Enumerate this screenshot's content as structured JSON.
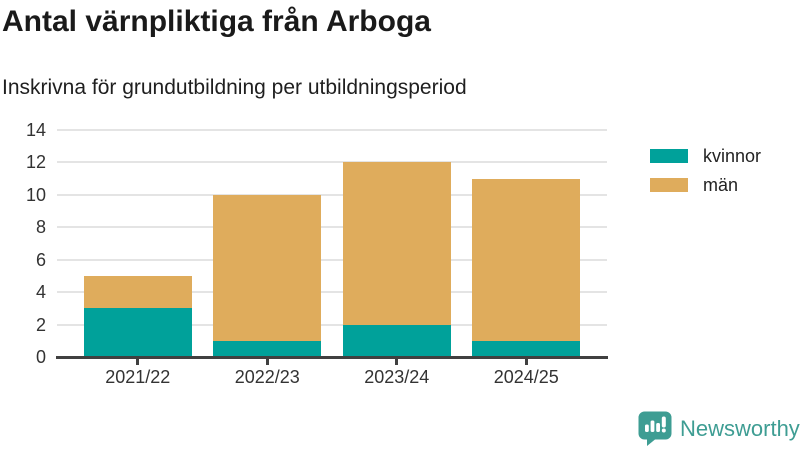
{
  "title": "Antal värnpliktiga från Arboga",
  "subtitle": "Inskrivna för grundutbildning per utbildningsperiod",
  "chart_data": {
    "type": "bar",
    "stacked": true,
    "title": "Antal värnpliktiga från Arboga",
    "subtitle": "Inskrivna för grundutbildning per utbildningsperiod",
    "categories": [
      "2021/22",
      "2022/23",
      "2023/24",
      "2024/25"
    ],
    "series": [
      {
        "name": "kvinnor",
        "color": "#00a19a",
        "values": [
          3,
          1,
          2,
          1
        ]
      },
      {
        "name": "män",
        "color": "#dfac5c",
        "values": [
          2,
          9,
          10,
          10
        ]
      }
    ],
    "totals": [
      5,
      10,
      12,
      11
    ],
    "xlabel": "",
    "ylabel": "",
    "ylim": [
      0,
      14
    ],
    "yticks": [
      0,
      2,
      4,
      6,
      8,
      10,
      12,
      14
    ],
    "grid": true,
    "legend_position": "right"
  },
  "colors": {
    "kvinnor": "#00a19a",
    "man": "#dfac5c",
    "axis": "#404040",
    "gridline": "#e4e4e4",
    "text": "#333333",
    "brand": "#3e9d93"
  },
  "footer": {
    "brand": "Newsworthy"
  }
}
